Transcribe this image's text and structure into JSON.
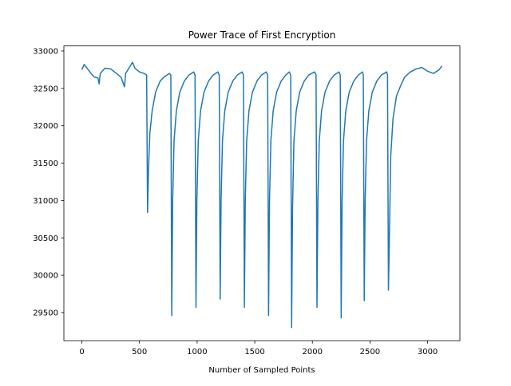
{
  "chart_data": {
    "type": "line",
    "title": "Power Trace of First Encryption",
    "x_label": "Number of Sampled Points",
    "color": "#1f77b4",
    "x": [
      0,
      20,
      50,
      80,
      110,
      140,
      150,
      160,
      200,
      250,
      300,
      340,
      370,
      380,
      420,
      440,
      460,
      500,
      540,
      562,
      570,
      578,
      590,
      610,
      640,
      680,
      720,
      760,
      772,
      780,
      788,
      800,
      820,
      850,
      890,
      930,
      970,
      982,
      990,
      998,
      1010,
      1030,
      1060,
      1100,
      1140,
      1180,
      1192,
      1200,
      1208,
      1220,
      1240,
      1270,
      1310,
      1350,
      1390,
      1402,
      1410,
      1418,
      1430,
      1450,
      1480,
      1520,
      1560,
      1600,
      1612,
      1620,
      1628,
      1640,
      1660,
      1690,
      1730,
      1770,
      1800,
      1812,
      1820,
      1828,
      1840,
      1860,
      1890,
      1930,
      1970,
      2020,
      2032,
      2040,
      2048,
      2060,
      2080,
      2110,
      2150,
      2190,
      2230,
      2242,
      2250,
      2258,
      2270,
      2290,
      2320,
      2360,
      2400,
      2435,
      2442,
      2450,
      2458,
      2470,
      2490,
      2520,
      2560,
      2600,
      2645,
      2652,
      2660,
      2668,
      2680,
      2700,
      2730,
      2770,
      2800,
      2850,
      2900,
      2950,
      3000,
      3050,
      3100,
      3124
    ],
    "values": [
      32750,
      32820,
      32760,
      32700,
      32650,
      32640,
      32560,
      32700,
      32770,
      32760,
      32700,
      32650,
      32520,
      32700,
      32800,
      32850,
      32770,
      32720,
      32700,
      32680,
      30840,
      31400,
      31900,
      32200,
      32450,
      32600,
      32660,
      32700,
      32680,
      29460,
      31000,
      31800,
      32200,
      32450,
      32600,
      32680,
      32720,
      32680,
      29570,
      31000,
      31800,
      32200,
      32450,
      32600,
      32680,
      32720,
      32680,
      29680,
      31000,
      31800,
      32200,
      32450,
      32600,
      32680,
      32720,
      32680,
      29570,
      31000,
      31800,
      32200,
      32450,
      32600,
      32680,
      32720,
      32680,
      29460,
      31000,
      31800,
      32200,
      32450,
      32600,
      32680,
      32720,
      32680,
      29300,
      30900,
      31800,
      32200,
      32450,
      32600,
      32680,
      32720,
      32680,
      29570,
      31000,
      31800,
      32200,
      32450,
      32600,
      32680,
      32720,
      32680,
      29430,
      31000,
      31800,
      32200,
      32450,
      32600,
      32680,
      32720,
      32680,
      29660,
      31000,
      31800,
      32200,
      32450,
      32600,
      32680,
      32720,
      32680,
      29800,
      30500,
      31600,
      32100,
      32400,
      32550,
      32650,
      32720,
      32760,
      32780,
      32730,
      32700,
      32750,
      32800
    ],
    "xlim": [
      -156,
      3280
    ],
    "ylim": [
      29124,
      33068
    ],
    "xticks": [
      0,
      500,
      1000,
      1500,
      2000,
      2500,
      3000
    ],
    "yticks": [
      29500,
      30000,
      30500,
      31000,
      31500,
      32000,
      32500,
      33000
    ]
  }
}
